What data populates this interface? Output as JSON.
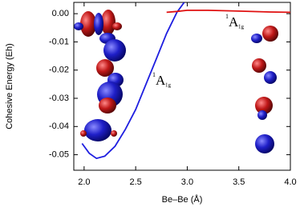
{
  "chart_data": {
    "type": "line",
    "xlabel": "Be–Be (Å)",
    "ylabel": "Cohesive Energy (Eh)",
    "xlim": [
      1.9,
      4.0
    ],
    "ylim": [
      -0.0555,
      0.004
    ],
    "xticks": [
      {
        "value": 2.0,
        "label": "2.0"
      },
      {
        "value": 2.5,
        "label": "2.5"
      },
      {
        "value": 3.0,
        "label": "3.0"
      },
      {
        "value": 3.5,
        "label": "3.5"
      },
      {
        "value": 4.0,
        "label": "4.0"
      }
    ],
    "yticks": [
      {
        "value": 0,
        "label": "0.00"
      },
      {
        "value": -0.01,
        "label": "-0.01"
      },
      {
        "value": -0.02,
        "label": "-0.02"
      },
      {
        "value": -0.03,
        "label": "-0.03"
      },
      {
        "value": -0.04,
        "label": "-0.04"
      },
      {
        "value": -0.05,
        "label": "-0.05"
      }
    ],
    "series": [
      {
        "color": "#1f1fe0",
        "x": [
          1.98,
          2.05,
          2.12,
          2.2,
          2.3,
          2.4,
          2.5,
          2.6,
          2.7,
          2.8,
          2.9,
          2.97
        ],
        "values": [
          -0.046,
          -0.0495,
          -0.0513,
          -0.0505,
          -0.047,
          -0.041,
          -0.034,
          -0.025,
          -0.016,
          -0.007,
          0.0005,
          0.004
        ]
      },
      {
        "color": "#e01010",
        "x": [
          2.8,
          2.9,
          3.0,
          3.2,
          3.5,
          3.8,
          4.0
        ],
        "values": [
          0.0005,
          0.0008,
          0.0012,
          0.0012,
          0.0009,
          0.0006,
          0.0005
        ]
      }
    ],
    "annotations": [
      {
        "sup": "1",
        "text": "A",
        "sub": "1g",
        "color": "#1f1fe0"
      },
      {
        "sup": "1",
        "text": "A",
        "sub": "1g",
        "color": "#e01010"
      }
    ]
  }
}
